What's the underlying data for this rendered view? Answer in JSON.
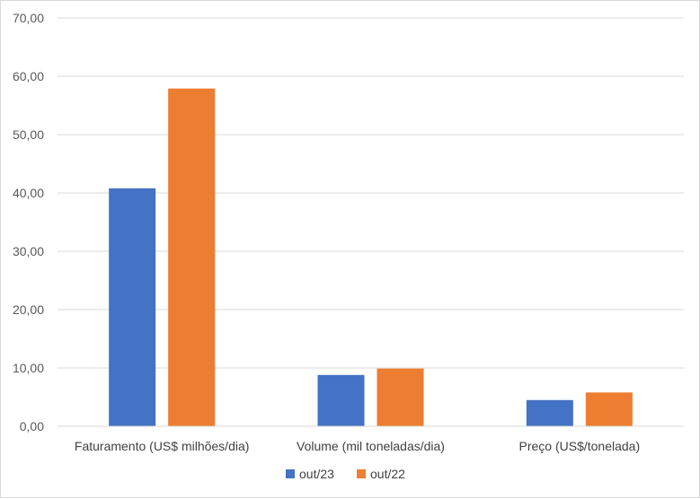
{
  "chart_data": {
    "type": "bar",
    "categories": [
      "Faturamento (US$ milhões/dia)",
      "Volume (mil toneladas/dia)",
      "Preço (US$/tonelada)"
    ],
    "series": [
      {
        "name": "out/23",
        "color": "#4472C4",
        "values": [
          40.8,
          8.8,
          4.5
        ]
      },
      {
        "name": "out/22",
        "color": "#ED7D31",
        "values": [
          57.9,
          9.9,
          5.8
        ]
      }
    ],
    "y_ticks": [
      "0,00",
      "10,00",
      "20,00",
      "30,00",
      "40,00",
      "50,00",
      "60,00",
      "70,00"
    ],
    "ylim": [
      0,
      70
    ],
    "y_tick_step": 10,
    "grid": true,
    "legend_position": "bottom-center",
    "gridline_color": "#d9d9d9"
  }
}
